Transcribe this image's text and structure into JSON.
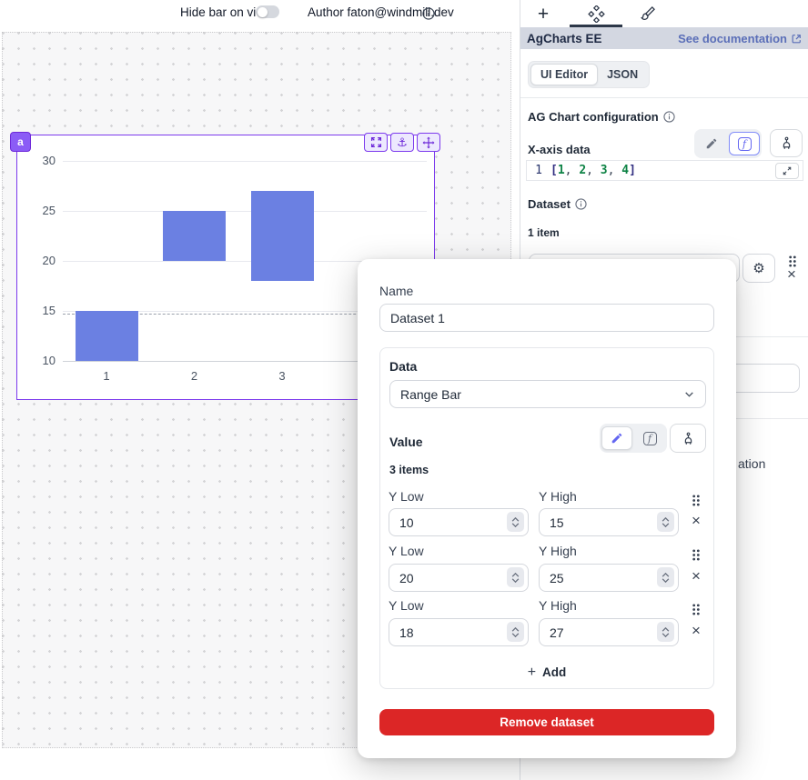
{
  "colors": {
    "accent_purple": "#7c3aed",
    "badge_purple": "#8b5cf6",
    "bar_blue": "#6b80e2",
    "link_blue": "#5b6fb8",
    "danger_red": "#dc2626",
    "selected_indigo": "#818cf8",
    "header_band": "#d3d7e1"
  },
  "topbar": {
    "hide_bar_label": "Hide bar on view",
    "toggle_state": "off",
    "author_label": "Author faton@windmill.dev"
  },
  "canvas": {
    "component_badge": "a"
  },
  "chart_data": {
    "type": "bar",
    "subtype": "range-bar",
    "title": "",
    "categories": [
      "1",
      "2",
      "3",
      "4"
    ],
    "series": [
      {
        "name": "Dataset 1",
        "ranges": [
          [
            10,
            15
          ],
          [
            20,
            25
          ],
          [
            18,
            27
          ]
        ]
      }
    ],
    "ylim": [
      10,
      30
    ],
    "yticks": [
      10,
      15,
      20,
      25,
      30
    ],
    "grid": "horizontal",
    "legend": "off",
    "bar_color": "#6b80e2",
    "crosshair_y": 14.7
  },
  "panel": {
    "component_title": "AgCharts EE",
    "doc_link_label": "See documentation",
    "mode_tabs": {
      "ui_editor": "UI Editor",
      "json": "JSON"
    },
    "section_title": "AG Chart configuration",
    "xaxis_label": "X-axis data",
    "code": {
      "line_number": "1",
      "tokens": [
        {
          "text": "[",
          "type": "bracket"
        },
        {
          "text": "1",
          "type": "num"
        },
        {
          "text": ", ",
          "type": "comma"
        },
        {
          "text": "2",
          "type": "num"
        },
        {
          "text": ", ",
          "type": "comma"
        },
        {
          "text": "3",
          "type": "num"
        },
        {
          "text": ", ",
          "type": "comma"
        },
        {
          "text": "4",
          "type": "num"
        },
        {
          "text": "]",
          "type": "bracket"
        }
      ]
    },
    "dataset_label": "Dataset",
    "dataset_count": "1 item",
    "hidden_text_fragment": "ation"
  },
  "modal": {
    "name_label": "Name",
    "name_value": "Dataset 1",
    "data_label": "Data",
    "data_type_value": "Range Bar",
    "value_label": "Value",
    "items_count": "3 items",
    "row_labels": {
      "low": "Y Low",
      "high": "Y High"
    },
    "rows": [
      {
        "y_low": "10",
        "y_high": "15"
      },
      {
        "y_low": "20",
        "y_high": "25"
      },
      {
        "y_low": "18",
        "y_high": "27"
      }
    ],
    "add_label": "Add",
    "remove_label": "Remove dataset"
  }
}
